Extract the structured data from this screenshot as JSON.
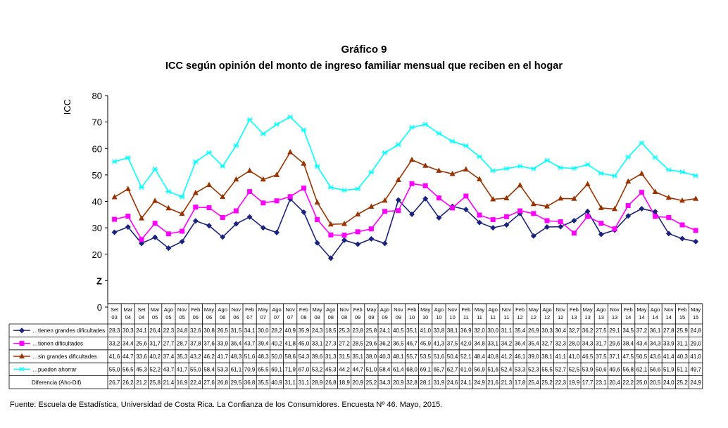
{
  "chart_data": {
    "type": "line",
    "title": "Gráfico 9",
    "subtitle": "ICC según opinión del monto de ingreso familiar mensual que reciben en el hogar",
    "ylabel": "ICC",
    "xlabel": "",
    "ylim": [
      0,
      80
    ],
    "yticks": [
      "80",
      "70",
      "60",
      "50",
      "40",
      "30",
      "20",
      "Z",
      "0"
    ],
    "grid": false,
    "legend": "data-table-below",
    "categories": [
      [
        "Set",
        "03"
      ],
      [
        "Mar",
        "04"
      ],
      [
        "Set",
        "04"
      ],
      [
        "Mar",
        "05"
      ],
      [
        "Ago",
        "05"
      ],
      [
        "Nov",
        "05"
      ],
      [
        "Feb",
        "06"
      ],
      [
        "May",
        "06"
      ],
      [
        "Ago",
        "06"
      ],
      [
        "Nov",
        "06"
      ],
      [
        "Feb",
        "07"
      ],
      [
        "May",
        "07"
      ],
      [
        "Ago",
        "07"
      ],
      [
        "Nov",
        "07"
      ],
      [
        "Feb",
        "08"
      ],
      [
        "May",
        "08"
      ],
      [
        "Ago",
        "08"
      ],
      [
        "Nov",
        "08"
      ],
      [
        "Feb",
        "09"
      ],
      [
        "May",
        "09"
      ],
      [
        "Ago",
        "09"
      ],
      [
        "Nov",
        "09"
      ],
      [
        "Feb",
        "10"
      ],
      [
        "May",
        "10"
      ],
      [
        "Ago",
        "10"
      ],
      [
        "Nov",
        "10"
      ],
      [
        "Feb",
        "11"
      ],
      [
        "May",
        "11"
      ],
      [
        "Ago",
        "11"
      ],
      [
        "Nov",
        "11"
      ],
      [
        "Feb",
        "12"
      ],
      [
        "May",
        "12"
      ],
      [
        "Ago",
        "12"
      ],
      [
        "Nov",
        "12"
      ],
      [
        "Feb",
        "13"
      ],
      [
        "May",
        "13"
      ],
      [
        "Ago",
        "13"
      ],
      [
        "Nov",
        "13"
      ],
      [
        "Feb",
        "14"
      ],
      [
        "May",
        "14"
      ],
      [
        "Ago",
        "14"
      ],
      [
        "Nov",
        "14"
      ],
      [
        "Feb",
        "15"
      ],
      [
        "May",
        "15"
      ]
    ],
    "series": [
      {
        "name": "…tienen grandes dificultades",
        "color": "#1a237e",
        "marker": "diamond",
        "values": [
          "28,3",
          "30,3",
          "24,1",
          "26,4",
          "22,3",
          "24,8",
          "32,6",
          "30,8",
          "26,5",
          "31,5",
          "34,1",
          "30,0",
          "28,2",
          "40,9",
          "35,9",
          "24,3",
          "18,5",
          "25,3",
          "23,8",
          "25,8",
          "24,1",
          "40,5",
          "35,1",
          "41,0",
          "33,8",
          "38,1",
          "36,9",
          "32,0",
          "30,0",
          "31,1",
          "35,4",
          "26,9",
          "30,3",
          "30,4",
          "32,7",
          "36,2",
          "27,5",
          "29,1",
          "34,5",
          "37,2",
          "36,1",
          "27,8",
          "25,9",
          "24,8"
        ]
      },
      {
        "name": "…tienen dificultades",
        "color": "#ff00ff",
        "marker": "square",
        "values": [
          "33,2",
          "34,4",
          "25,6",
          "31,7",
          "27,7",
          "28,7",
          "37,8",
          "37,6",
          "33,9",
          "36,4",
          "43,7",
          "39,4",
          "40,2",
          "41,8",
          "45,0",
          "33,1",
          "27,3",
          "27,2",
          "28,5",
          "29,6",
          "36,2",
          "36,5",
          "46,7",
          "45,9",
          "41,3",
          "37,5",
          "42,0",
          "34,8",
          "33,1",
          "34,2",
          "36,4",
          "35,4",
          "32,7",
          "32,3",
          "28,0",
          "34,3",
          "31,7",
          "29,6",
          "38,4",
          "43,4",
          "34,3",
          "33,9",
          "31,1",
          "29,0"
        ]
      },
      {
        "name": "…sin grandes dificultades",
        "color": "#993300",
        "marker": "triangle",
        "values": [
          "41,6",
          "44,7",
          "33,6",
          "40,2",
          "37,4",
          "35,3",
          "43,2",
          "46,2",
          "41,7",
          "48,3",
          "51,6",
          "48,3",
          "50,0",
          "58,6",
          "54,3",
          "39,6",
          "31,3",
          "31,5",
          "35,1",
          "38,0",
          "40,3",
          "48,1",
          "55,7",
          "53,5",
          "51,6",
          "50,4",
          "52,1",
          "48,4",
          "40,8",
          "41,2",
          "46,1",
          "39,0",
          "38,1",
          "41,1",
          "41,0",
          "46,5",
          "37,5",
          "37,1",
          "47,5",
          "50,5",
          "43,6",
          "41,4",
          "40,3",
          "41,0"
        ]
      },
      {
        "name": "…pueden ahorrar",
        "color": "#00ffff",
        "marker": "asterisk",
        "values": [
          "55,0",
          "56,5",
          "45,3",
          "52,2",
          "43,7",
          "41,7",
          "55,0",
          "58,4",
          "53,3",
          "61,1",
          "70,9",
          "65,5",
          "69,1",
          "71,9",
          "67,0",
          "53,2",
          "45,3",
          "44,2",
          "44,7",
          "51,0",
          "58,4",
          "61,4",
          "68,0",
          "69,1",
          "65,7",
          "62,7",
          "61,0",
          "56,9",
          "51,6",
          "52,4",
          "53,3",
          "52,3",
          "55,5",
          "52,7",
          "52,5",
          "53,9",
          "50,6",
          "49,6",
          "56,8",
          "62,1",
          "56,6",
          "51,9",
          "51,1",
          "49,7"
        ]
      },
      {
        "name": "Diferencia (Aho-Dif)",
        "color": "",
        "marker": "none",
        "values": [
          "26,7",
          "26,2",
          "21,2",
          "25,8",
          "21,4",
          "16,9",
          "22,4",
          "27,6",
          "26,8",
          "29,5",
          "36,8",
          "35,5",
          "40,9",
          "31,1",
          "31,1",
          "28,9",
          "26,8",
          "18,9",
          "20,9",
          "25,2",
          "34,3",
          "20,9",
          "32,8",
          "28,1",
          "31,9",
          "24,6",
          "24,1",
          "24,9",
          "21,6",
          "21,3",
          "17,8",
          "25,4",
          "25,2",
          "22,3",
          "19,9",
          "17,7",
          "23,1",
          "20,4",
          "22,2",
          "25,0",
          "20,5",
          "24,0",
          "25,2",
          "24,9"
        ]
      }
    ]
  },
  "footer": {
    "source": "Fuente: Escuela de Estadística, Universidad de Costa Rica. La Confianza de los Consumidores. Encuesta Nº 46. Mayo, 2015."
  }
}
